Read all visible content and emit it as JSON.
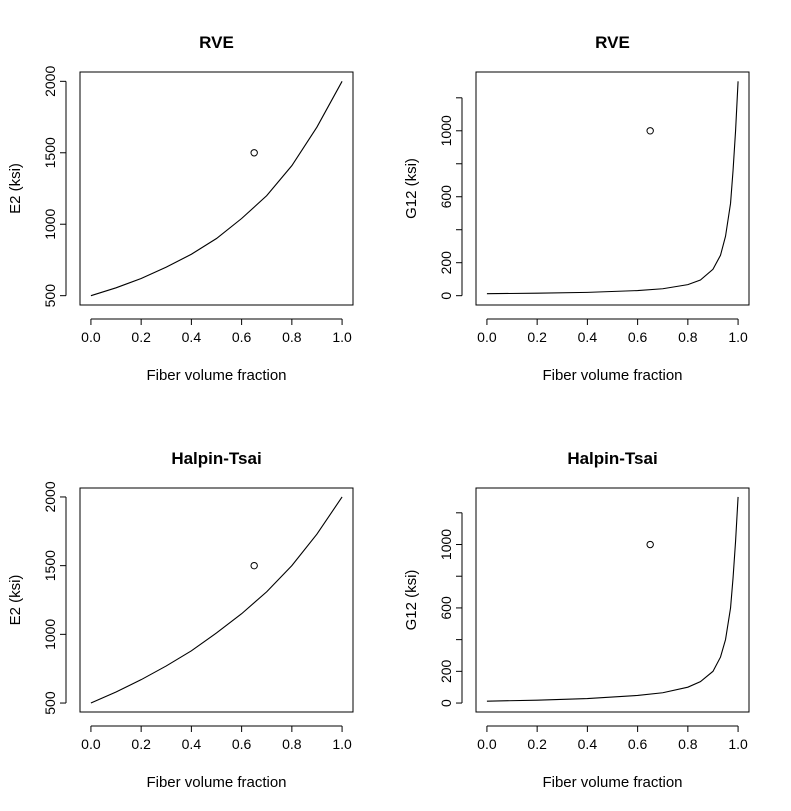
{
  "chart_data": [
    {
      "type": "line",
      "title": "RVE",
      "xlabel": "Fiber volume fraction",
      "ylabel": "E2 (ksi)",
      "xlim": [
        0,
        1
      ],
      "ylim": [
        500,
        2000
      ],
      "xticks": [
        "0.0",
        "0.2",
        "0.4",
        "0.6",
        "0.8",
        "1.0"
      ],
      "yticks": [
        "500",
        "1000",
        "1500",
        "2000"
      ],
      "x": [
        0,
        0.1,
        0.2,
        0.3,
        0.4,
        0.5,
        0.6,
        0.7,
        0.8,
        0.9,
        1.0
      ],
      "y": [
        500,
        555,
        620,
        700,
        790,
        900,
        1040,
        1200,
        1410,
        1680,
        2000
      ],
      "points": [
        {
          "x": 0.65,
          "y": 1500
        }
      ]
    },
    {
      "type": "line",
      "title": "RVE",
      "xlabel": "Fiber volume fraction",
      "ylabel": "G12 (ksi)",
      "xlim": [
        0,
        1
      ],
      "ylim": [
        0,
        1300
      ],
      "xticks": [
        "0.0",
        "0.2",
        "0.4",
        "0.6",
        "0.8",
        "1.0"
      ],
      "yticks": [
        "0",
        "200",
        "600",
        "1000"
      ],
      "x": [
        0,
        0.2,
        0.4,
        0.6,
        0.7,
        0.8,
        0.85,
        0.9,
        0.93,
        0.95,
        0.97,
        0.98,
        0.99,
        1.0
      ],
      "y": [
        12,
        15,
        20,
        31,
        42,
        67,
        95,
        160,
        245,
        360,
        560,
        760,
        1000,
        1300
      ],
      "points": [
        {
          "x": 0.65,
          "y": 1000
        }
      ]
    },
    {
      "type": "line",
      "title": "Halpin-Tsai",
      "xlabel": "Fiber volume fraction",
      "ylabel": "E2 (ksi)",
      "xlim": [
        0,
        1
      ],
      "ylim": [
        500,
        2000
      ],
      "xticks": [
        "0.0",
        "0.2",
        "0.4",
        "0.6",
        "0.8",
        "1.0"
      ],
      "yticks": [
        "500",
        "1000",
        "1500",
        "2000"
      ],
      "x": [
        0,
        0.1,
        0.2,
        0.3,
        0.4,
        0.5,
        0.6,
        0.7,
        0.8,
        0.9,
        1.0
      ],
      "y": [
        500,
        580,
        670,
        770,
        880,
        1010,
        1150,
        1310,
        1500,
        1730,
        2000
      ],
      "points": [
        {
          "x": 0.65,
          "y": 1500
        }
      ]
    },
    {
      "type": "line",
      "title": "Halpin-Tsai",
      "xlabel": "Fiber volume fraction",
      "ylabel": "G12 (ksi)",
      "xlim": [
        0,
        1
      ],
      "ylim": [
        0,
        1300
      ],
      "xticks": [
        "0.0",
        "0.2",
        "0.4",
        "0.6",
        "0.8",
        "1.0"
      ],
      "yticks": [
        "0",
        "200",
        "600",
        "1000"
      ],
      "x": [
        0,
        0.2,
        0.4,
        0.6,
        0.7,
        0.8,
        0.85,
        0.9,
        0.93,
        0.95,
        0.97,
        0.98,
        0.99,
        1.0
      ],
      "y": [
        12,
        18,
        28,
        48,
        65,
        100,
        135,
        200,
        290,
        400,
        600,
        790,
        1020,
        1300
      ],
      "points": [
        {
          "x": 0.65,
          "y": 1000
        }
      ]
    }
  ]
}
